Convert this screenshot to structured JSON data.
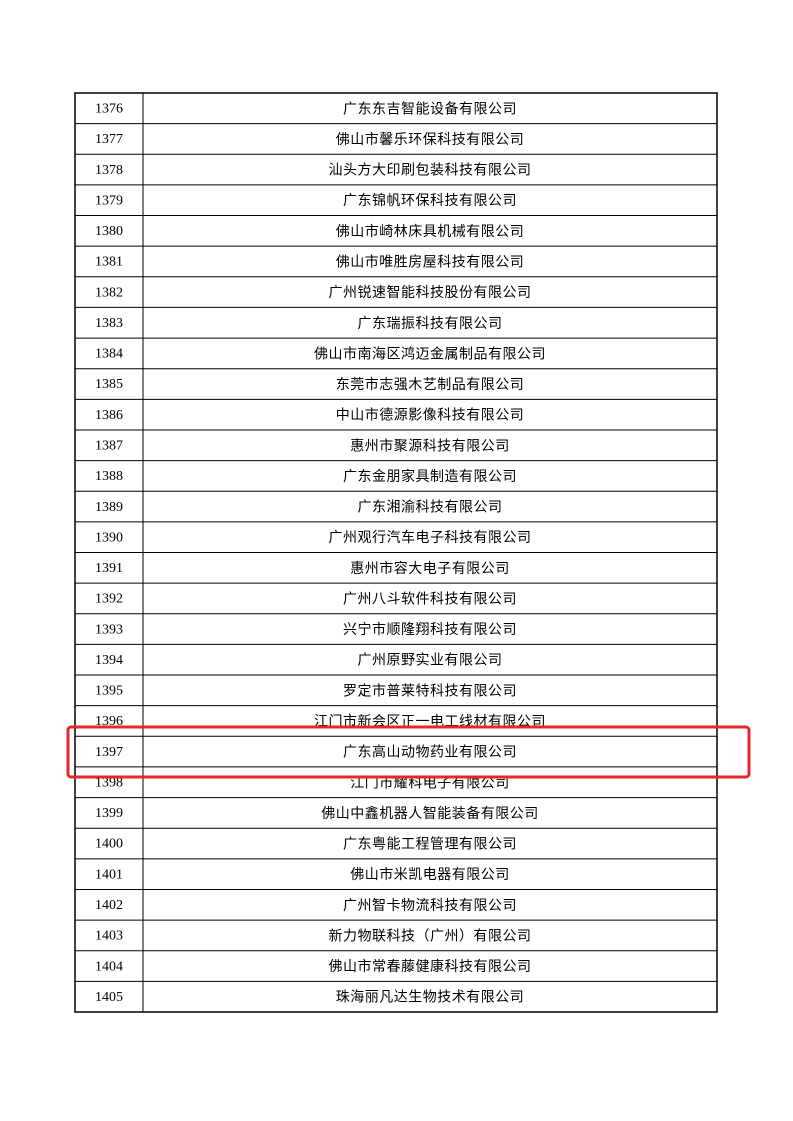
{
  "table": {
    "rows": [
      [
        "1376",
        "广东东吉智能设备有限公司"
      ],
      [
        "1377",
        "佛山市馨乐环保科技有限公司"
      ],
      [
        "1378",
        "汕头方大印刷包装科技有限公司"
      ],
      [
        "1379",
        "广东锦帆环保科技有限公司"
      ],
      [
        "1380",
        "佛山市崎林床具机械有限公司"
      ],
      [
        "1381",
        "佛山市唯胜房屋科技有限公司"
      ],
      [
        "1382",
        "广州锐速智能科技股份有限公司"
      ],
      [
        "1383",
        "广东瑞振科技有限公司"
      ],
      [
        "1384",
        "佛山市南海区鸿迈金属制品有限公司"
      ],
      [
        "1385",
        "东莞市志强木艺制品有限公司"
      ],
      [
        "1386",
        "中山市德源影像科技有限公司"
      ],
      [
        "1387",
        "惠州市聚源科技有限公司"
      ],
      [
        "1388",
        "广东金朋家具制造有限公司"
      ],
      [
        "1389",
        "广东湘渝科技有限公司"
      ],
      [
        "1390",
        "广州观行汽车电子科技有限公司"
      ],
      [
        "1391",
        "惠州市容大电子有限公司"
      ],
      [
        "1392",
        "广州八斗软件科技有限公司"
      ],
      [
        "1393",
        "兴宁市顺隆翔科技有限公司"
      ],
      [
        "1394",
        "广州原野实业有限公司"
      ],
      [
        "1395",
        "罗定市普莱特科技有限公司"
      ],
      [
        "1396",
        "江门市新会区正一电工线材有限公司"
      ],
      [
        "1397",
        "广东高山动物药业有限公司"
      ],
      [
        "1398",
        "江门市耀科电子有限公司"
      ],
      [
        "1399",
        "佛山中鑫机器人智能装备有限公司"
      ],
      [
        "1400",
        "广东粤能工程管理有限公司"
      ],
      [
        "1401",
        "佛山市米凯电器有限公司"
      ],
      [
        "1402",
        "广州智卡物流科技有限公司"
      ],
      [
        "1403",
        "新力物联科技（广州）有限公司"
      ],
      [
        "1404",
        "佛山市常春藤健康科技有限公司"
      ],
      [
        "1405",
        "珠海丽凡达生物技术有限公司"
      ]
    ]
  }
}
